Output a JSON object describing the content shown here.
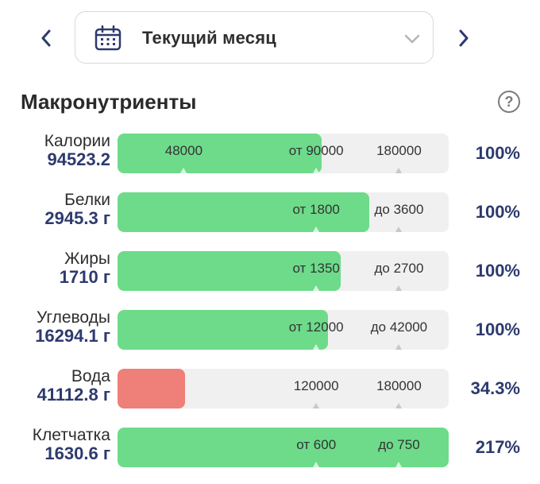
{
  "header": {
    "period_label": "Текущий месяц",
    "prev_icon": "chevron-left-icon",
    "next_icon": "chevron-right-icon",
    "calendar_icon": "calendar-icon",
    "dropdown_icon": "chevron-down-icon"
  },
  "section": {
    "title": "Макронутриенты",
    "help_label": "?"
  },
  "colors": {
    "ok": "#6ddb8a",
    "low": "#ef7f79",
    "accent": "#2d3a6e"
  },
  "rows": [
    {
      "name": "Калории",
      "value": "94523.2",
      "fill": 0.616,
      "status": "ok",
      "percent": "100%",
      "marks": [
        {
          "text": "48000",
          "at": 0.2
        },
        {
          "text": "от 90000",
          "at": 0.6
        },
        {
          "text": "180000",
          "at": 0.85
        }
      ]
    },
    {
      "name": "Белки",
      "value": "2945.3 г",
      "fill": 0.76,
      "status": "ok",
      "percent": "100%",
      "marks": [
        {
          "text": "от 1800",
          "at": 0.6
        },
        {
          "text": "до 3600",
          "at": 0.85
        }
      ]
    },
    {
      "name": "Жиры",
      "value": "1710 г",
      "fill": 0.675,
      "status": "ok",
      "percent": "100%",
      "marks": [
        {
          "text": "от 1350",
          "at": 0.6
        },
        {
          "text": "до 2700",
          "at": 0.85
        }
      ]
    },
    {
      "name": "Углеводы",
      "value": "16294.1 г",
      "fill": 0.635,
      "status": "ok",
      "percent": "100%",
      "marks": [
        {
          "text": "от 12000",
          "at": 0.6
        },
        {
          "text": "до 42000",
          "at": 0.85
        }
      ]
    },
    {
      "name": "Вода",
      "value": "41112.8 г",
      "fill": 0.205,
      "status": "low",
      "percent": "34.3%",
      "marks": [
        {
          "text": "120000",
          "at": 0.6
        },
        {
          "text": "180000",
          "at": 0.85
        }
      ]
    },
    {
      "name": "Клетчатка",
      "value": "1630.6 г",
      "fill": 1.0,
      "status": "ok",
      "percent": "217%",
      "marks": [
        {
          "text": "от 600",
          "at": 0.6
        },
        {
          "text": "до 750",
          "at": 0.85
        }
      ]
    }
  ]
}
